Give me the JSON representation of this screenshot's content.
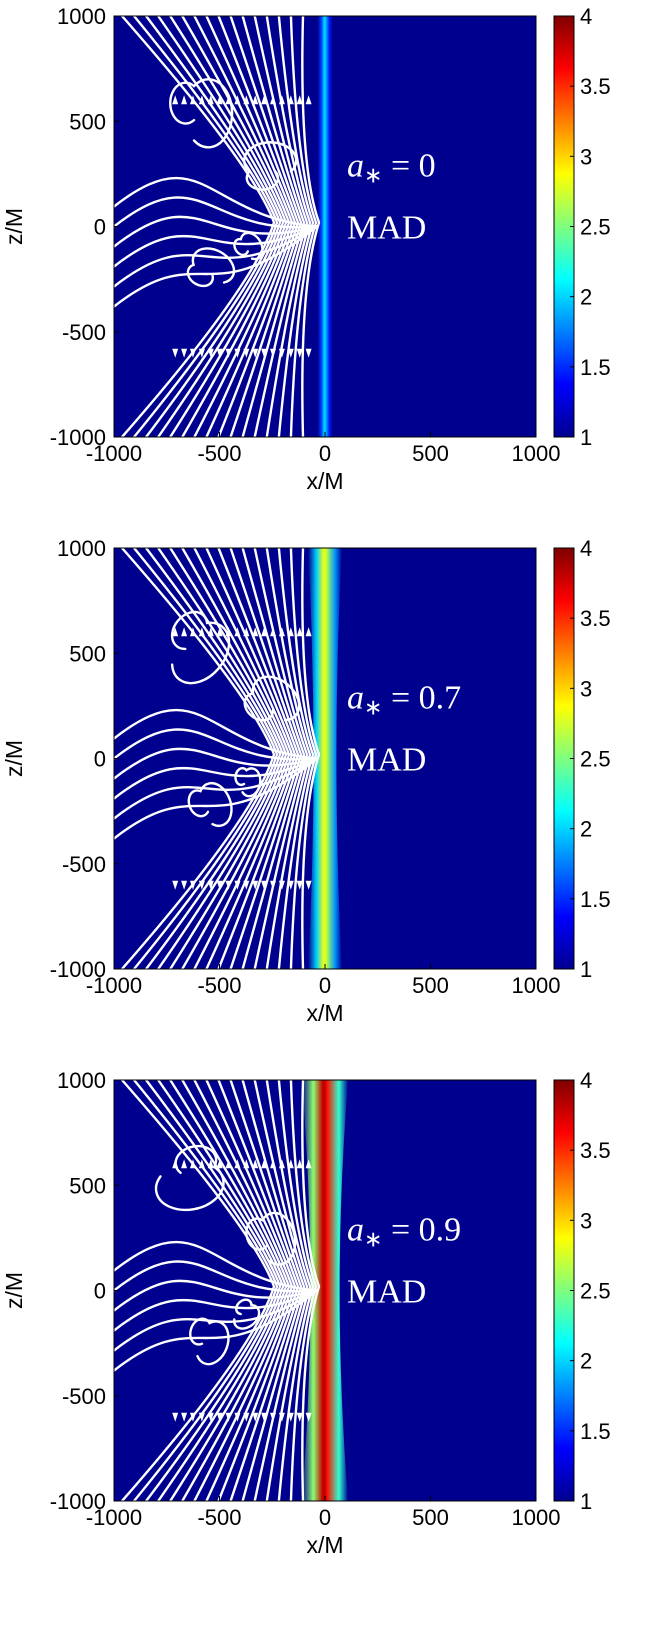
{
  "chart_data": [
    {
      "type": "heatmap",
      "xlabel": "x/M",
      "ylabel": "z/M",
      "xlim": [
        -1000,
        1000
      ],
      "ylim": [
        -1000,
        1000
      ],
      "x_ticks": [
        "-1000",
        "-500",
        "0",
        "500",
        "1000"
      ],
      "y_ticks": [
        "1000",
        "500",
        "0",
        "-500",
        "-1000"
      ],
      "colorbar": {
        "min": 1,
        "max": 4,
        "ticks": [
          "4",
          "3.5",
          "3",
          "2.5",
          "2",
          "1.5",
          "1"
        ]
      },
      "annotation_symbol": "a",
      "annotation_subscript": "∗",
      "annotation_value": " = 0",
      "annotation_label": "MAD",
      "funnel": {
        "peak": 2.0,
        "halfwidth_top": 35,
        "halfwidth_bottom": 35
      },
      "overlay": "magnetic field streamlines"
    },
    {
      "type": "heatmap",
      "xlabel": "x/M",
      "ylabel": "z/M",
      "xlim": [
        -1000,
        1000
      ],
      "ylim": [
        -1000,
        1000
      ],
      "x_ticks": [
        "-1000",
        "-500",
        "0",
        "500",
        "1000"
      ],
      "y_ticks": [
        "1000",
        "500",
        "0",
        "-500",
        "-1000"
      ],
      "colorbar": {
        "min": 1,
        "max": 4,
        "ticks": [
          "4",
          "3.5",
          "3",
          "2.5",
          "2",
          "1.5",
          "1"
        ]
      },
      "annotation_symbol": "a",
      "annotation_subscript": "∗",
      "annotation_value": " = 0.7",
      "annotation_label": "MAD",
      "funnel": {
        "peak": 2.8,
        "halfwidth_top": 80,
        "halfwidth_bottom": 80
      },
      "overlay": "magnetic field streamlines"
    },
    {
      "type": "heatmap",
      "xlabel": "x/M",
      "ylabel": "z/M",
      "xlim": [
        -1000,
        1000
      ],
      "ylim": [
        -1000,
        1000
      ],
      "x_ticks": [
        "-1000",
        "-500",
        "0",
        "500",
        "1000"
      ],
      "y_ticks": [
        "1000",
        "500",
        "0",
        "-500",
        "-1000"
      ],
      "colorbar": {
        "min": 1,
        "max": 4,
        "ticks": [
          "4",
          "3.5",
          "3",
          "2.5",
          "2",
          "1.5",
          "1"
        ]
      },
      "annotation_symbol": "a",
      "annotation_subscript": "∗",
      "annotation_value": " = 0.9",
      "annotation_label": "MAD",
      "funnel": {
        "peak": 3.8,
        "halfwidth_top": 110,
        "halfwidth_bottom": 110
      },
      "overlay": "magnetic field streamlines"
    }
  ],
  "colors": {
    "colormap": [
      "#00008f",
      "#0000ff",
      "#007fff",
      "#00ffff",
      "#7fff7f",
      "#ffff00",
      "#ff7f00",
      "#ff0000",
      "#7f0000"
    ],
    "streamline": "#ffffff",
    "background": "#ffffff"
  }
}
